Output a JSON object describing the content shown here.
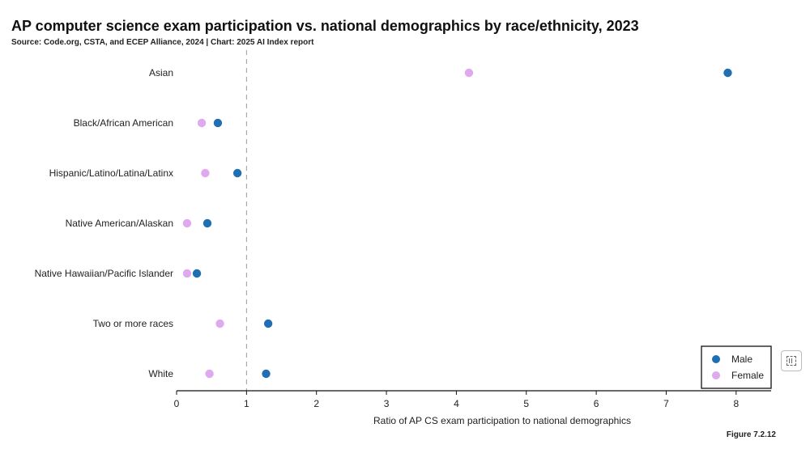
{
  "title": "AP computer science exam participation vs. national demographics by race/ethnicity, 2023",
  "source": "Source: Code.org, CSTA, and ECEP Alliance, 2024 | Chart: 2025 AI Index report",
  "figure_label": "Figure 7.2.12",
  "toolbar": {
    "icon": "select-region-icon"
  },
  "colors": {
    "male": "#1f6fb2",
    "female": "#e0a8ee",
    "reference_line": "#999999"
  },
  "chart_data": {
    "type": "scatter",
    "title": "AP computer science exam participation vs. national demographics by race/ethnicity, 2023",
    "xlabel": "Ratio of AP CS exam participation to national demographics",
    "ylabel": "",
    "xlim": [
      0,
      8.5
    ],
    "xticks": [
      "0",
      "1",
      "2",
      "3",
      "4",
      "5",
      "6",
      "7",
      "8"
    ],
    "reference_x": 1,
    "categories": [
      "Asian",
      "Black/African American",
      "Hispanic/Latino/Latina/Latinx",
      "Native American/Alaskan",
      "Native Hawaiian/Pacific Islander",
      "Two or more races",
      "White"
    ],
    "series": [
      {
        "name": "Male",
        "color": "#1f6fb2",
        "values": [
          7.88,
          0.59,
          0.87,
          0.44,
          0.29,
          1.31,
          1.28
        ]
      },
      {
        "name": "Female",
        "color": "#e0a8ee",
        "values": [
          4.18,
          0.36,
          0.41,
          0.15,
          0.15,
          0.62,
          0.47
        ]
      }
    ],
    "legend": "bottom-right",
    "grid": false
  }
}
